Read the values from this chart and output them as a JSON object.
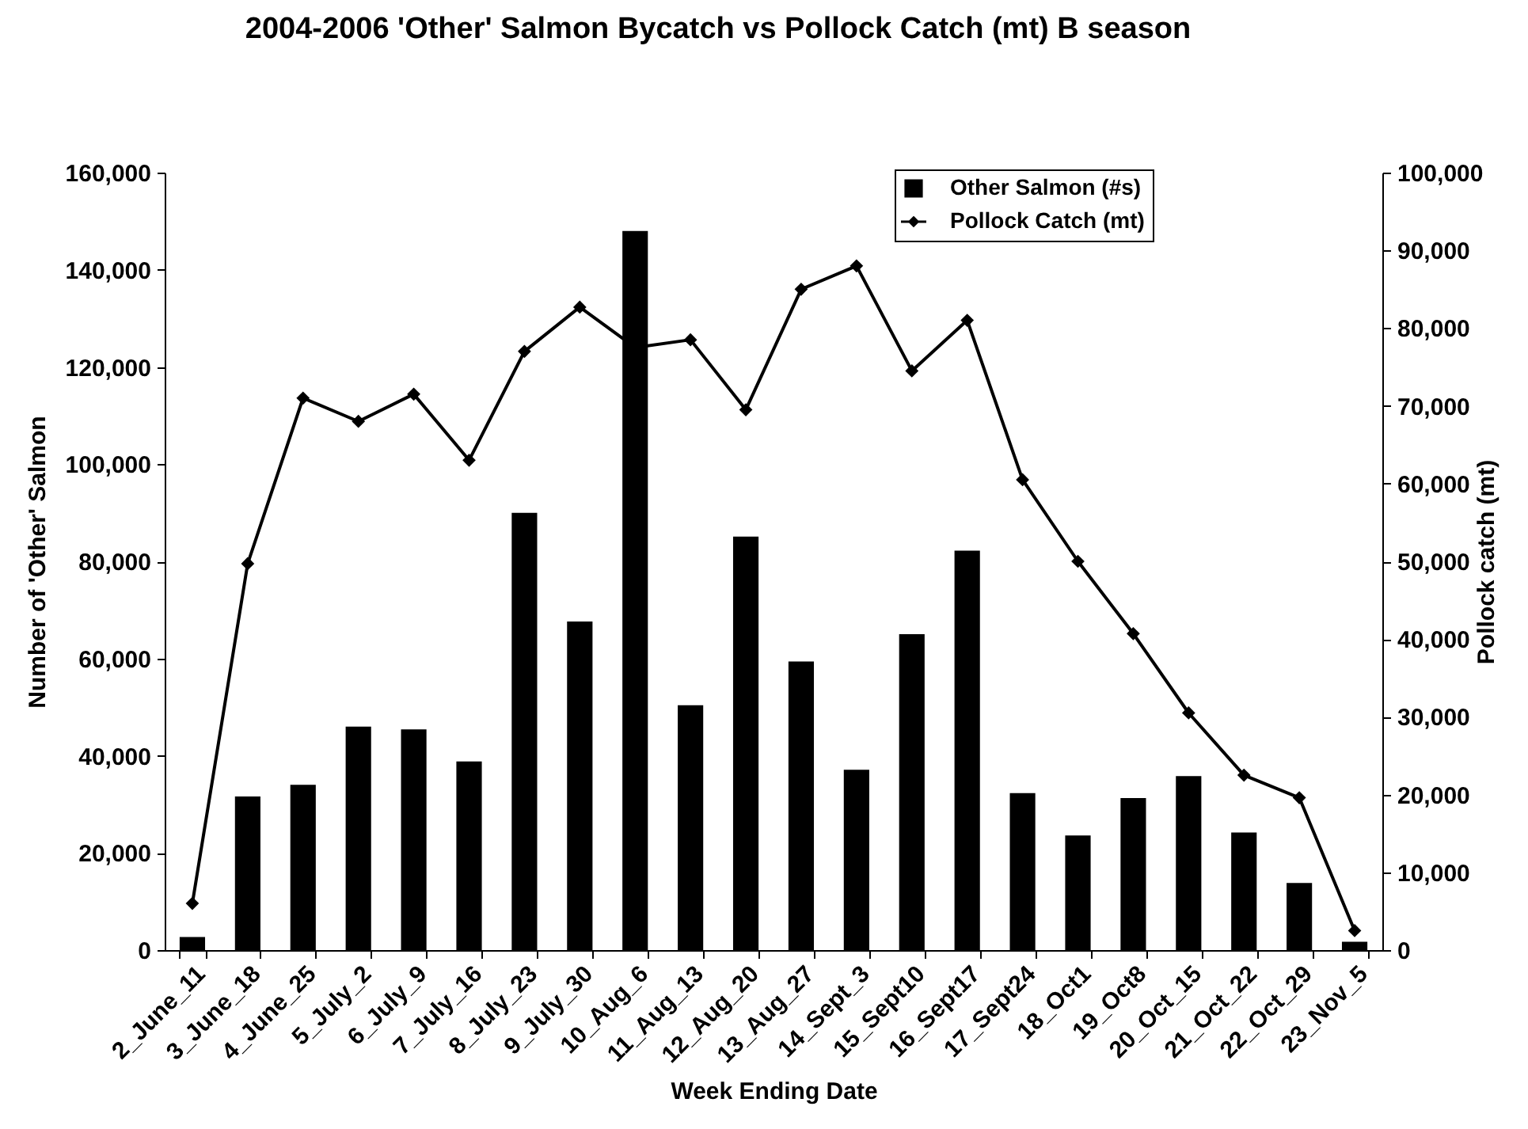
{
  "chart_data": {
    "type": "bar",
    "title": "2004-2006 'Other' Salmon Bycatch vs Pollock Catch (mt) B season",
    "xlabel": "Week Ending Date",
    "ylabel": "Number of 'Other' Salmon",
    "y2label": "Pollock catch (mt)",
    "categories": [
      "2_June_11",
      "3_June_18",
      "4_June_25",
      "5_July_2",
      "6_July_9",
      "7_July_16",
      "8_July_23",
      "9_July_30",
      "10_Aug_6",
      "11_Aug_13",
      "12_Aug_20",
      "13_Aug_27",
      "14_Sept_3",
      "15_Sept10",
      "16_Sept17",
      "17_Sept24",
      "18_Oct1",
      "19_Oct8",
      "20_Oct_15",
      "21_Oct_22",
      "22_Oct_29",
      "23_Nov_5"
    ],
    "series": [
      {
        "name": "Other Salmon (#s)",
        "color": "#000000",
        "values": [
          2700,
          31600,
          34000,
          46000,
          45400,
          38800,
          90000,
          67600,
          148000,
          50400,
          85100,
          59400,
          37100,
          65000,
          82200,
          32300,
          23600,
          31300,
          35800,
          24200,
          13800,
          1700
        ]
      },
      {
        "name": "Pollock Catch (mt)",
        "type": "line",
        "axis": "y2",
        "color": "#000000",
        "values": [
          6000,
          49700,
          71000,
          68000,
          71500,
          63000,
          77000,
          82700,
          77500,
          78500,
          69500,
          85000,
          88000,
          74500,
          81000,
          60500,
          50000,
          40700,
          30500,
          22500,
          19600,
          2500
        ]
      }
    ],
    "ylim": [
      0,
      160000
    ],
    "yticks": [
      0,
      {
        "value": 20000,
        "label": "20,000"
      },
      {
        "value": 40000,
        "label": "40,000"
      },
      {
        "value": 60000,
        "label": "60,000"
      },
      {
        "value": 80000,
        "label": "80,000"
      },
      {
        "value": 100000,
        "label": "100,000"
      },
      {
        "value": 120000,
        "label": "120,000"
      },
      {
        "value": 140000,
        "label": "140,000"
      },
      {
        "value": 160000,
        "label": "160,000"
      }
    ],
    "y2lim": [
      0,
      100000
    ],
    "y2ticks": [
      0,
      {
        "value": 10000,
        "label": "10,000"
      },
      {
        "value": 20000,
        "label": "20,000"
      },
      {
        "value": 30000,
        "label": "30,000"
      },
      {
        "value": 40000,
        "label": "40,000"
      },
      {
        "value": 50000,
        "label": "50,000"
      },
      {
        "value": 60000,
        "label": "60,000"
      },
      {
        "value": 70000,
        "label": "70,000"
      },
      {
        "value": 80000,
        "label": "80,000"
      },
      {
        "value": 90000,
        "label": "90,000"
      },
      {
        "value": 100000,
        "label": "100,000"
      }
    ],
    "legend": "top right",
    "marker": "diamond",
    "line_style": "solid"
  }
}
